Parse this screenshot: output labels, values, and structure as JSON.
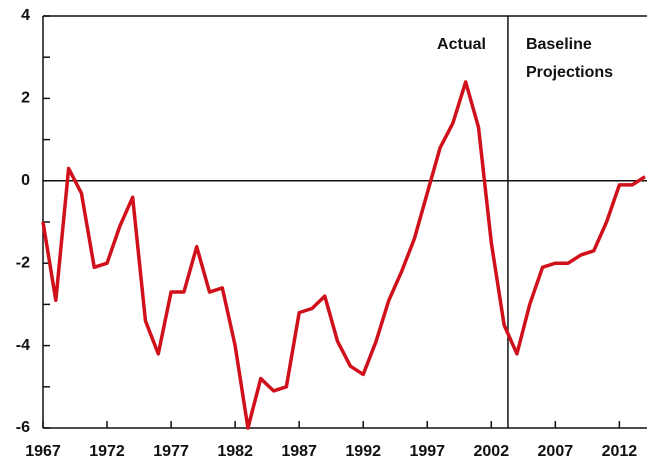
{
  "chart_data": {
    "type": "line",
    "x": [
      1967,
      1968,
      1969,
      1970,
      1971,
      1972,
      1973,
      1974,
      1975,
      1976,
      1977,
      1978,
      1979,
      1980,
      1981,
      1982,
      1983,
      1984,
      1985,
      1986,
      1987,
      1988,
      1989,
      1990,
      1991,
      1992,
      1993,
      1994,
      1995,
      1996,
      1997,
      1998,
      1999,
      2000,
      2001,
      2002,
      2003,
      2004,
      2005,
      2006,
      2007,
      2008,
      2009,
      2010,
      2011,
      2012,
      2013,
      2014
    ],
    "values": [
      -1.0,
      -2.9,
      0.3,
      -0.3,
      -2.1,
      -2.0,
      -1.1,
      -0.4,
      -3.4,
      -4.2,
      -2.7,
      -2.7,
      -1.6,
      -2.7,
      -2.6,
      -4.0,
      -6.0,
      -4.8,
      -5.1,
      -5.0,
      -3.2,
      -3.1,
      -2.8,
      -3.9,
      -4.5,
      -4.7,
      -3.9,
      -2.9,
      -2.2,
      -1.4,
      -0.3,
      0.8,
      1.4,
      2.4,
      1.3,
      -1.5,
      -3.5,
      -4.2,
      -3.0,
      -2.1,
      -2.0,
      -2.0,
      -1.8,
      -1.7,
      -1.0,
      -0.1,
      -0.1,
      0.1
    ],
    "color": "#d0101a",
    "xlim": [
      1967,
      2014
    ],
    "xticks": [
      1967,
      1972,
      1977,
      1982,
      1987,
      1992,
      1997,
      2002,
      2007,
      2012
    ],
    "ylim": [
      -6,
      4
    ],
    "yticks": [
      -6,
      -4,
      -2,
      0,
      2,
      4
    ],
    "yminorticks": [
      -5,
      -3,
      -1,
      1,
      3
    ],
    "divider_x": 2003.3,
    "annotations": [
      "Actual",
      "Baseline",
      "Projections"
    ]
  }
}
